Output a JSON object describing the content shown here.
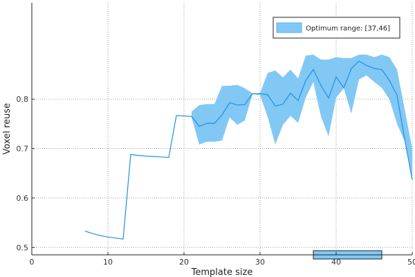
{
  "chart_data": {
    "type": "line",
    "xlabel": "Template size",
    "ylabel": "Voxel reuse",
    "xlim": [
      0,
      50
    ],
    "ylim": [
      0.485,
      0.995
    ],
    "x_ticks": [
      0,
      10,
      20,
      30,
      40,
      50
    ],
    "y_ticks": [
      0.5,
      0.6,
      0.7,
      0.8
    ],
    "grid": "dotted",
    "legend_position": "top-right",
    "colors": {
      "line": "#1e90e0",
      "band": "#82c8f5",
      "band_edge": "#5cb2ee",
      "grid": "#9a9a9a",
      "axis": "#222222"
    },
    "series": [
      {
        "x": [
          7,
          8,
          9,
          10,
          11,
          12,
          13,
          14,
          15,
          16,
          17,
          18,
          19,
          20,
          21,
          22,
          23,
          24,
          25,
          26,
          27,
          28,
          29,
          30,
          31,
          32,
          33,
          34,
          35,
          36,
          37,
          38,
          39,
          40,
          41,
          42,
          43,
          44,
          45,
          46,
          47,
          48,
          49,
          50
        ],
        "y": [
          0.533,
          0.528,
          0.524,
          0.521,
          0.519,
          0.517,
          0.688,
          0.686,
          0.685,
          0.684,
          0.683,
          0.682,
          0.767,
          0.766,
          0.765,
          0.745,
          0.751,
          0.751,
          0.768,
          0.793,
          0.788,
          0.789,
          0.811,
          0.811,
          0.809,
          0.786,
          0.79,
          0.812,
          0.797,
          0.838,
          0.86,
          0.828,
          0.802,
          0.845,
          0.823,
          0.862,
          0.877,
          0.868,
          0.862,
          0.86,
          0.838,
          0.808,
          0.72,
          0.637
        ]
      }
    ],
    "band": {
      "x": [
        21,
        22,
        23,
        24,
        25,
        26,
        27,
        28,
        29,
        30,
        31,
        32,
        33,
        34,
        35,
        36,
        37,
        38,
        39,
        40,
        41,
        42,
        43,
        44,
        45,
        46,
        47,
        48,
        49,
        50
      ],
      "upper": [
        0.775,
        0.788,
        0.79,
        0.79,
        0.827,
        0.827,
        0.829,
        0.822,
        0.812,
        0.812,
        0.853,
        0.858,
        0.844,
        0.86,
        0.842,
        0.888,
        0.89,
        0.88,
        0.88,
        0.885,
        0.883,
        0.883,
        0.89,
        0.89,
        0.885,
        0.89,
        0.885,
        0.86,
        0.78,
        0.7
      ],
      "lower": [
        0.763,
        0.708,
        0.714,
        0.714,
        0.716,
        0.763,
        0.748,
        0.757,
        0.81,
        0.808,
        0.764,
        0.708,
        0.748,
        0.766,
        0.752,
        0.803,
        0.835,
        0.765,
        0.725,
        0.803,
        0.822,
        0.771,
        0.84,
        0.848,
        0.835,
        0.823,
        0.8,
        0.75,
        0.715,
        0.637
      ]
    },
    "legend": {
      "label": "Optimum range: [37,46]"
    },
    "optimum_range": [
      37,
      46
    ]
  }
}
